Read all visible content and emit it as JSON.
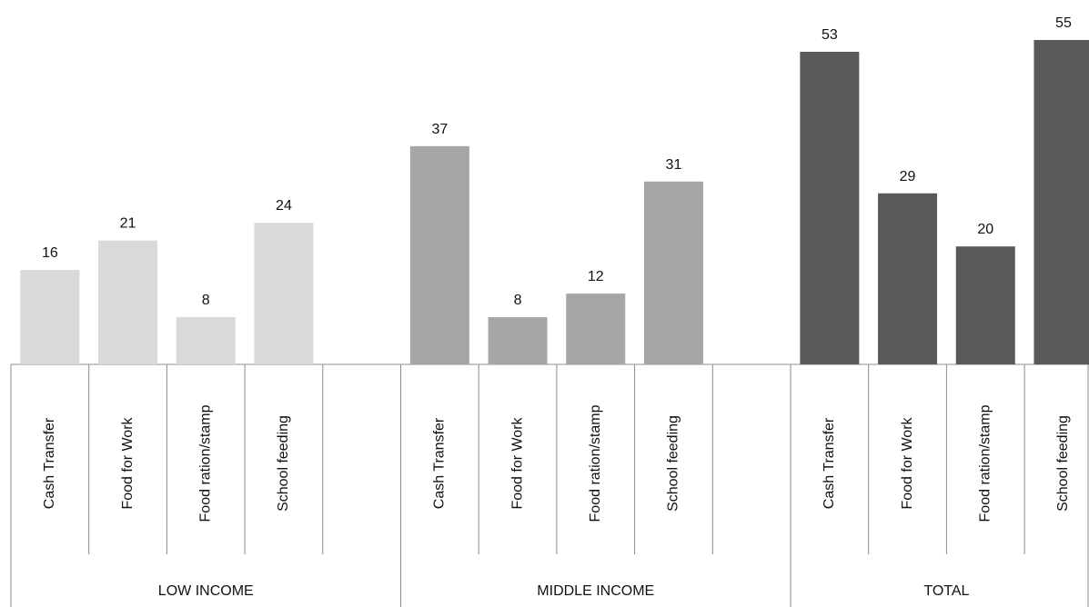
{
  "chart_data": {
    "type": "bar",
    "groups": [
      {
        "name": "LOW INCOME",
        "color": "#d9d9d9",
        "categories": [
          "Cash Transfer",
          "Food for Work",
          "Food ration/stamp",
          "School feeding",
          ""
        ],
        "values": [
          16,
          21,
          8,
          24,
          null
        ]
      },
      {
        "name": "MIDDLE INCOME",
        "color": "#a6a6a6",
        "categories": [
          "Cash Transfer",
          "Food for Work",
          "Food ration/stamp",
          "School feeding",
          ""
        ],
        "values": [
          37,
          8,
          12,
          31,
          null
        ]
      },
      {
        "name": "TOTAL",
        "color": "#595959",
        "categories": [
          "Cash Transfer",
          "Food for Work",
          "Food ration/stamp",
          "School feeding"
        ],
        "values": [
          53,
          29,
          20,
          55
        ]
      }
    ],
    "ylim": [
      0,
      55
    ],
    "grid": false,
    "title": "",
    "xlabel": "",
    "ylabel": ""
  }
}
